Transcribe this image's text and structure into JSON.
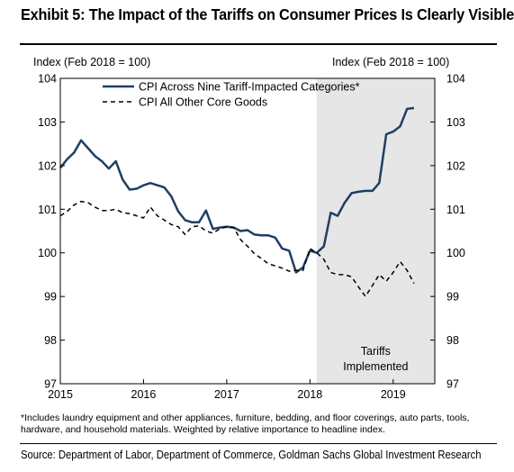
{
  "title": "Exhibit 5: The Impact of the Tariffs on Consumer Prices Is Clearly Visible",
  "footnote": "*Includes laundry equipment and other appliances, furniture, bedding, and floor coverings, auto parts, tools, hardware, and household materials. Weighted by relative importance to headline index.",
  "source": "Source: Department of Labor, Department of Commerce, Goldman Sachs Global Investment Research",
  "chart_data": {
    "type": "line",
    "title": "Exhibit 5: The Impact of the Tariffs on Consumer Prices Is Clearly Visible",
    "ylabel_left": "Index (Feb 2018 = 100)",
    "ylabel_right": "Index (Feb 2018 = 100)",
    "ylim": [
      97,
      104
    ],
    "yticks": [
      97,
      98,
      99,
      100,
      101,
      102,
      103,
      104
    ],
    "xlim": [
      2015,
      2019.5
    ],
    "xticks": [
      2015,
      2016,
      2017,
      2018,
      2019
    ],
    "grid": false,
    "legend_position": "top-center",
    "shaded_region": {
      "x_start": 2018.08,
      "x_end": 2019.5,
      "label": "Tariffs Implemented",
      "color": "#e6e6e6"
    },
    "series": [
      {
        "name": "CPI Across Nine Tariff-Impacted Categories*",
        "style": "solid",
        "color": "#1f3f63",
        "x": [
          2015.0,
          2015.083,
          2015.167,
          2015.25,
          2015.333,
          2015.417,
          2015.5,
          2015.583,
          2015.667,
          2015.75,
          2015.833,
          2015.917,
          2016.0,
          2016.083,
          2016.167,
          2016.25,
          2016.333,
          2016.417,
          2016.5,
          2016.583,
          2016.667,
          2016.75,
          2016.833,
          2016.917,
          2017.0,
          2017.083,
          2017.167,
          2017.25,
          2017.333,
          2017.417,
          2017.5,
          2017.583,
          2017.667,
          2017.75,
          2017.833,
          2017.917,
          2018.0,
          2018.083,
          2018.167,
          2018.25,
          2018.333,
          2018.417,
          2018.5,
          2018.583,
          2018.667,
          2018.75,
          2018.833,
          2018.917,
          2019.0,
          2019.083,
          2019.167,
          2019.25
        ],
        "values": [
          101.95,
          102.15,
          102.3,
          102.58,
          102.4,
          102.22,
          102.1,
          101.93,
          102.1,
          101.68,
          101.45,
          101.47,
          101.55,
          101.6,
          101.55,
          101.5,
          101.3,
          100.95,
          100.75,
          100.7,
          100.7,
          100.97,
          100.55,
          100.58,
          100.6,
          100.58,
          100.5,
          100.52,
          100.42,
          100.4,
          100.4,
          100.35,
          100.1,
          100.05,
          99.55,
          99.67,
          100.05,
          100.0,
          100.15,
          100.92,
          100.85,
          101.15,
          101.37,
          101.4,
          101.42,
          101.42,
          101.6,
          102.72,
          102.78,
          102.9,
          103.3,
          103.32
        ]
      },
      {
        "name": "CPI All Other Core Goods",
        "style": "dashed",
        "color": "#000000",
        "x": [
          2015.0,
          2015.083,
          2015.167,
          2015.25,
          2015.333,
          2015.417,
          2015.5,
          2015.583,
          2015.667,
          2015.75,
          2015.833,
          2015.917,
          2016.0,
          2016.083,
          2016.167,
          2016.25,
          2016.333,
          2016.417,
          2016.5,
          2016.583,
          2016.667,
          2016.75,
          2016.833,
          2016.917,
          2017.0,
          2017.083,
          2017.167,
          2017.25,
          2017.333,
          2017.417,
          2017.5,
          2017.583,
          2017.667,
          2017.75,
          2017.833,
          2017.917,
          2018.0,
          2018.083,
          2018.167,
          2018.25,
          2018.333,
          2018.417,
          2018.5,
          2018.583,
          2018.667,
          2018.75,
          2018.833,
          2018.917,
          2019.0,
          2019.083,
          2019.167,
          2019.25
        ],
        "values": [
          100.85,
          100.95,
          101.1,
          101.18,
          101.15,
          101.05,
          100.97,
          100.97,
          101.0,
          100.92,
          100.9,
          100.85,
          100.8,
          101.05,
          100.85,
          100.75,
          100.65,
          100.6,
          100.42,
          100.6,
          100.62,
          100.5,
          100.45,
          100.55,
          100.6,
          100.58,
          100.3,
          100.15,
          99.98,
          99.87,
          99.75,
          99.7,
          99.65,
          99.58,
          99.6,
          99.6,
          100.1,
          100.0,
          99.85,
          99.55,
          99.5,
          99.5,
          99.45,
          99.22,
          99.0,
          99.25,
          99.5,
          99.35,
          99.55,
          99.8,
          99.6,
          99.3
        ]
      }
    ]
  }
}
